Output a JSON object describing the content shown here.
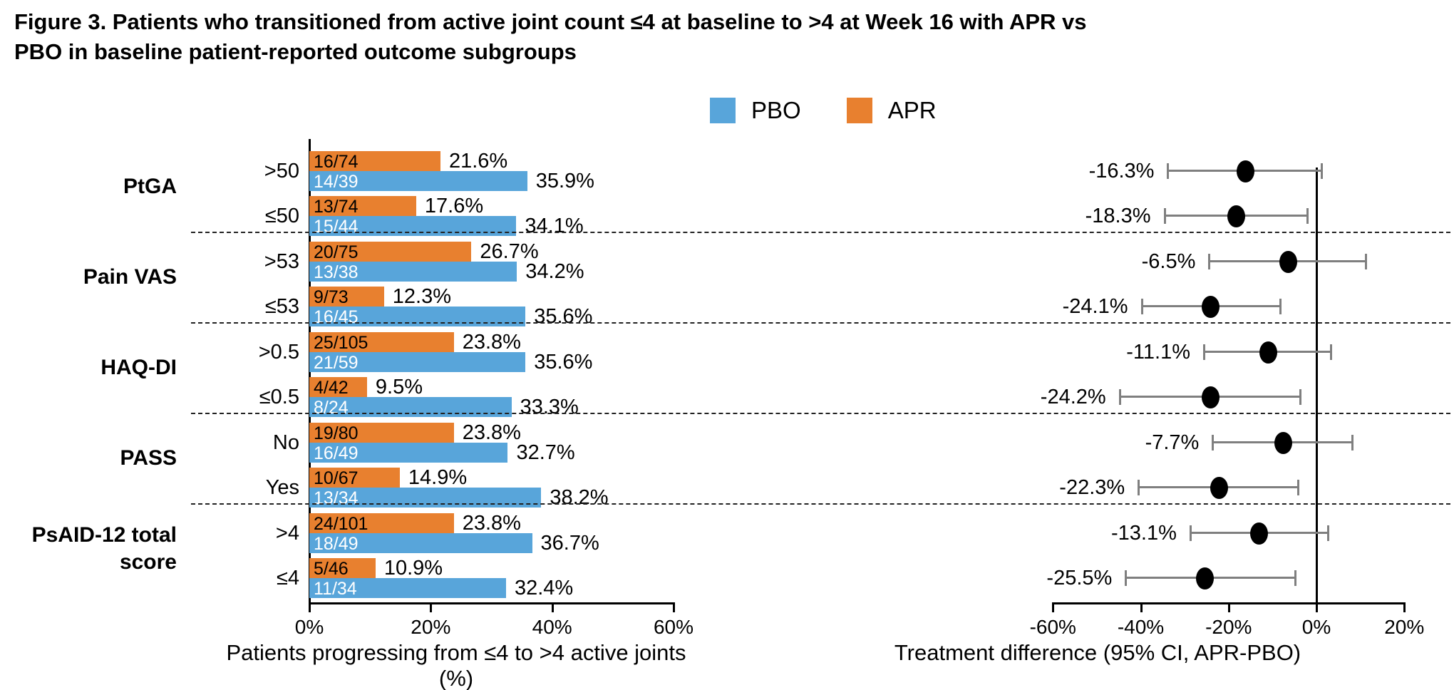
{
  "title": "Figure 3. Patients who transitioned from active joint count ≤4 at baseline to >4 at Week 16 with APR vs PBO in baseline patient-reported outcome subgroups",
  "chart_data": {
    "type": "bar",
    "subtype": "horizontal-grouped-bars-with-forest-plot",
    "title": "Figure 3. Patients who transitioned from active joint count ≤4 at baseline to >4 at Week 16 with APR vs PBO in baseline patient-reported outcome subgroups",
    "legend": [
      {
        "label": "PBO",
        "color": "#58A5DA"
      },
      {
        "label": "APR",
        "color": "#E8802F"
      }
    ],
    "colors": {
      "pbo": "#58A5DA",
      "apr": "#E8802F",
      "ci": "#7f7f7f",
      "dot": "#000000"
    },
    "bar_axis": {
      "label": "Patients progressing from ≤4 to >4 active joints (%)",
      "min": 0,
      "max": 60,
      "grid": false,
      "ticks": [
        {
          "value": 0,
          "label": "0%"
        },
        {
          "value": 20,
          "label": "20%"
        },
        {
          "value": 40,
          "label": "40%"
        },
        {
          "value": 60,
          "label": "60%"
        }
      ]
    },
    "forest_axis": {
      "label": "Treatment difference (95% CI, APR-PBO)",
      "min": -60,
      "max": 20,
      "zero_line": 0,
      "grid": false,
      "ticks": [
        {
          "value": -60,
          "label": "-60%"
        },
        {
          "value": -40,
          "label": "-40%"
        },
        {
          "value": -20,
          "label": "-20%"
        },
        {
          "value": 0,
          "label": "0%"
        },
        {
          "value": 20,
          "label": "20%"
        }
      ]
    },
    "groups": [
      {
        "name": "PtGA",
        "rows": [
          {
            "label": ">50",
            "apr": {
              "fraction": "16/74",
              "pct": 21.6,
              "pct_label": "21.6%"
            },
            "pbo": {
              "fraction": "14/39",
              "pct": 35.9,
              "pct_label": "35.9%"
            },
            "diff": {
              "value": -16.3,
              "label": "-16.3%",
              "ci_low": -34.0,
              "ci_high": 1.5
            }
          },
          {
            "label": "≤50",
            "apr": {
              "fraction": "13/74",
              "pct": 17.6,
              "pct_label": "17.6%"
            },
            "pbo": {
              "fraction": "15/44",
              "pct": 34.1,
              "pct_label": "34.1%"
            },
            "diff": {
              "value": -18.3,
              "label": "-18.3%",
              "ci_low": -34.8,
              "ci_high": -1.8
            }
          }
        ]
      },
      {
        "name": "Pain VAS",
        "rows": [
          {
            "label": ">53",
            "apr": {
              "fraction": "20/75",
              "pct": 26.7,
              "pct_label": "26.7%"
            },
            "pbo": {
              "fraction": "13/38",
              "pct": 34.2,
              "pct_label": "34.2%"
            },
            "diff": {
              "value": -6.5,
              "label": "-6.5%",
              "ci_low": -24.6,
              "ci_high": 11.6
            }
          },
          {
            "label": "≤53",
            "apr": {
              "fraction": "9/73",
              "pct": 12.3,
              "pct_label": "12.3%"
            },
            "pbo": {
              "fraction": "16/45",
              "pct": 35.6,
              "pct_label": "35.6%"
            },
            "diff": {
              "value": -24.1,
              "label": "-24.1%",
              "ci_low": -40.0,
              "ci_high": -8.0
            }
          }
        ]
      },
      {
        "name": "HAQ-DI",
        "rows": [
          {
            "label": ">0.5",
            "apr": {
              "fraction": "25/105",
              "pct": 23.8,
              "pct_label": "23.8%"
            },
            "pbo": {
              "fraction": "21/59",
              "pct": 35.6,
              "pct_label": "35.6%"
            },
            "diff": {
              "value": -11.1,
              "label": "-11.1%",
              "ci_low": -25.8,
              "ci_high": 3.5
            }
          },
          {
            "label": "≤0.5",
            "apr": {
              "fraction": "4/42",
              "pct": 9.5,
              "pct_label": "9.5%"
            },
            "pbo": {
              "fraction": "8/24",
              "pct": 33.3,
              "pct_label": "33.3%"
            },
            "diff": {
              "value": -24.2,
              "label": "-24.2%",
              "ci_low": -45.0,
              "ci_high": -3.4
            }
          }
        ]
      },
      {
        "name": "PASS",
        "rows": [
          {
            "label": "No",
            "apr": {
              "fraction": "19/80",
              "pct": 23.8,
              "pct_label": "23.8%"
            },
            "pbo": {
              "fraction": "16/49",
              "pct": 32.7,
              "pct_label": "32.7%"
            },
            "diff": {
              "value": -7.7,
              "label": "-7.7%",
              "ci_low": -23.8,
              "ci_high": 8.4
            }
          },
          {
            "label": "Yes",
            "apr": {
              "fraction": "10/67",
              "pct": 14.9,
              "pct_label": "14.9%"
            },
            "pbo": {
              "fraction": "13/34",
              "pct": 38.2,
              "pct_label": "38.2%"
            },
            "diff": {
              "value": -22.3,
              "label": "-22.3%",
              "ci_low": -40.7,
              "ci_high": -3.9
            }
          }
        ]
      },
      {
        "name": "PsAID-12 total score",
        "rows": [
          {
            "label": ">4",
            "apr": {
              "fraction": "24/101",
              "pct": 23.8,
              "pct_label": "23.8%"
            },
            "pbo": {
              "fraction": "18/49",
              "pct": 36.7,
              "pct_label": "36.7%"
            },
            "diff": {
              "value": -13.1,
              "label": "-13.1%",
              "ci_low": -28.9,
              "ci_high": 2.9
            }
          },
          {
            "label": "≤4",
            "apr": {
              "fraction": "5/46",
              "pct": 10.9,
              "pct_label": "10.9%"
            },
            "pbo": {
              "fraction": "11/34",
              "pct": 32.4,
              "pct_label": "32.4%"
            },
            "diff": {
              "value": -25.5,
              "label": "-25.5%",
              "ci_low": -43.6,
              "ci_high": -4.5
            }
          }
        ]
      }
    ]
  }
}
